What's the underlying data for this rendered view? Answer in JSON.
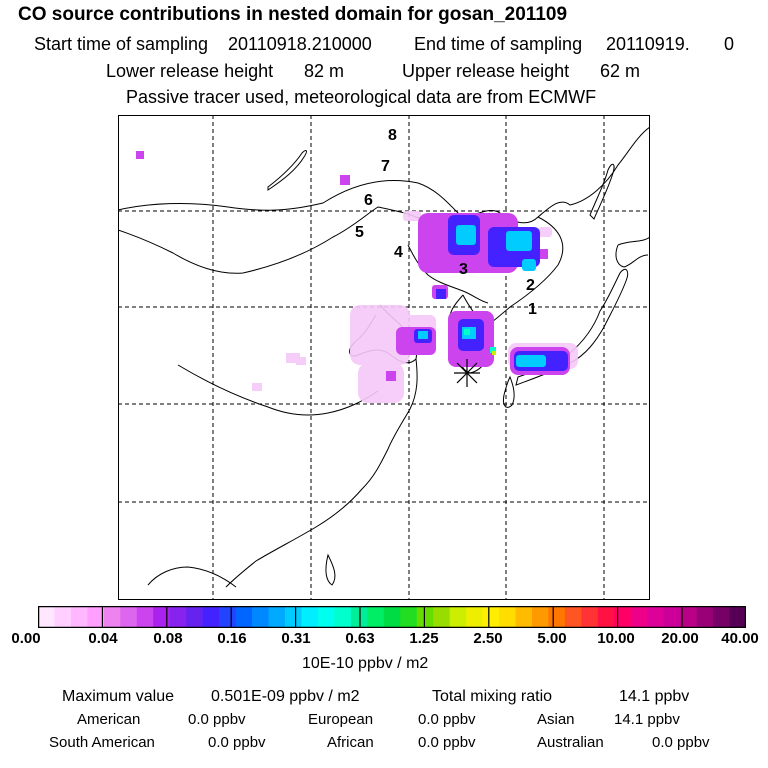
{
  "title": "CO  source contributions in nested domain for gosan_201109",
  "sampling": {
    "start_label": "Start time of sampling",
    "start_value": "20110918.210000",
    "end_label": "End time of sampling",
    "end_value": "20110919.",
    "end_suffix": "0"
  },
  "release": {
    "lower_label": "Lower release height",
    "lower_value": "82 m",
    "upper_label": "Upper release height",
    "upper_value": "62 m"
  },
  "note": "Passive tracer used, meteorological data are from ECMWF",
  "trajectory_labels": [
    "1",
    "2",
    "3",
    "4",
    "5",
    "6",
    "7",
    "8"
  ],
  "colorbar": {
    "ticks": [
      "0.00",
      "0.04",
      "0.08",
      "0.16",
      "0.31",
      "0.63",
      "1.25",
      "2.50",
      "5.00",
      "10.00",
      "20.00",
      "40.00"
    ],
    "unit": "10E-10 ppbv / m2",
    "colors": [
      "#ffe8ff",
      "#ffd0ff",
      "#ffb8ff",
      "#ffa0ff",
      "#ee82ee",
      "#dd66ee",
      "#cc44ee",
      "#aa22ee",
      "#8822ee",
      "#6622ee",
      "#4422ff",
      "#2244ff",
      "#0066ff",
      "#0088ff",
      "#00aaff",
      "#00ccff",
      "#00eeff",
      "#00ffee",
      "#00ffcc",
      "#00ee99",
      "#00ee66",
      "#00dd44",
      "#22dd22",
      "#66dd00",
      "#99dd00",
      "#ccee00",
      "#eeee00",
      "#ffee00",
      "#ffdd00",
      "#ffbb00",
      "#ff9900",
      "#ff7700",
      "#ff5522",
      "#ff3333",
      "#ff1144",
      "#ff0066",
      "#ee0088",
      "#dd0099",
      "#cc0099",
      "#bb0088",
      "#990077",
      "#770066",
      "#550055"
    ]
  },
  "summary": {
    "max_label": "Maximum value",
    "max_value": "0.501E-09 ppbv / m2",
    "total_label": "Total mixing ratio",
    "total_value": "14.1 ppbv"
  },
  "regions": [
    {
      "name": "American",
      "value": "0.0 ppbv"
    },
    {
      "name": "European",
      "value": "0.0 ppbv"
    },
    {
      "name": "Asian",
      "value": "14.1 ppbv"
    },
    {
      "name": "South American",
      "value": "0.0 ppbv"
    },
    {
      "name": "African",
      "value": "0.0 ppbv"
    },
    {
      "name": "Australian",
      "value": "0.0 ppbv"
    }
  ]
}
